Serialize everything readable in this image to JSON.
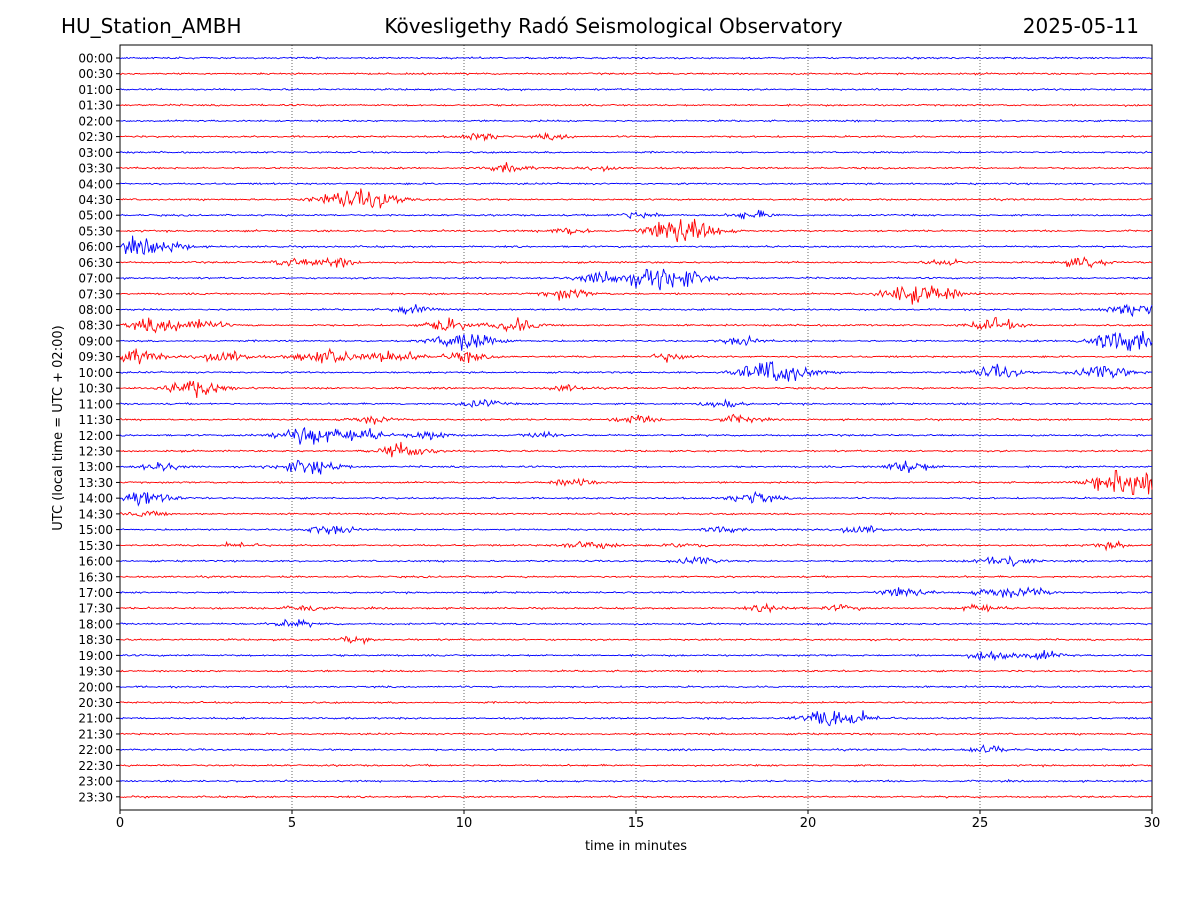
{
  "header": {
    "station": "HU_Station_AMBH",
    "observatory": "Kövesligethy Radó Seismological Observatory",
    "date": "2025-05-11"
  },
  "chart_data": {
    "type": "line",
    "title": "Kövesligethy Radó Seismological Observatory",
    "xlabel": "time in minutes",
    "ylabel": "UTC (local time = UTC + 02:00)",
    "xlim": [
      0,
      30
    ],
    "x_ticks": [
      0,
      5,
      10,
      15,
      20,
      25,
      30
    ],
    "x_gridlines": [
      5,
      10,
      15,
      20,
      25
    ],
    "grid": "vertical dotted",
    "colors": {
      "even_rows": "#0000ff",
      "odd_rows": "#ff0000"
    },
    "rows": [
      {
        "label": "00:00",
        "events": []
      },
      {
        "label": "00:30",
        "events": []
      },
      {
        "label": "01:00",
        "events": []
      },
      {
        "label": "01:30",
        "events": []
      },
      {
        "label": "02:00",
        "events": []
      },
      {
        "label": "02:30",
        "events": [
          [
            10.5,
            0.4
          ],
          [
            12.6,
            0.3
          ]
        ]
      },
      {
        "label": "03:00",
        "events": []
      },
      {
        "label": "03:30",
        "events": [
          [
            11.3,
            0.4
          ],
          [
            14.0,
            0.3
          ]
        ]
      },
      {
        "label": "04:00",
        "events": []
      },
      {
        "label": "04:30",
        "events": [
          [
            6.3,
            0.6
          ],
          [
            7.4,
            0.8
          ]
        ]
      },
      {
        "label": "05:00",
        "events": [
          [
            15.1,
            0.4
          ],
          [
            18.4,
            0.4
          ]
        ]
      },
      {
        "label": "05:30",
        "events": [
          [
            13.0,
            0.4
          ],
          [
            16.0,
            0.6
          ],
          [
            16.5,
            1.0
          ]
        ]
      },
      {
        "label": "06:00",
        "events": [
          [
            0.5,
            0.7
          ],
          [
            1.5,
            0.4
          ]
        ]
      },
      {
        "label": "06:30",
        "events": [
          [
            5.0,
            0.4
          ],
          [
            6.3,
            0.5
          ],
          [
            28.0,
            0.5
          ],
          [
            24.0,
            0.3
          ]
        ]
      },
      {
        "label": "07:00",
        "events": [
          [
            14.0,
            0.6
          ],
          [
            15.5,
            0.9
          ],
          [
            16.4,
            0.7
          ]
        ]
      },
      {
        "label": "07:30",
        "events": [
          [
            13.0,
            0.5
          ],
          [
            22.7,
            0.6
          ],
          [
            23.6,
            0.8
          ]
        ]
      },
      {
        "label": "08:00",
        "events": [
          [
            8.5,
            0.4
          ],
          [
            29.5,
            0.7
          ]
        ]
      },
      {
        "label": "08:30",
        "events": [
          [
            1.0,
            0.7
          ],
          [
            2.3,
            0.6
          ],
          [
            9.5,
            0.6
          ],
          [
            11.5,
            0.6
          ],
          [
            25.4,
            0.6
          ]
        ]
      },
      {
        "label": "09:00",
        "events": [
          [
            10.0,
            0.9
          ],
          [
            18.0,
            0.4
          ],
          [
            28.9,
            0.8
          ],
          [
            29.6,
            0.5
          ]
        ]
      },
      {
        "label": "09:30",
        "events": [
          [
            0.3,
            0.8
          ],
          [
            3.0,
            0.7
          ],
          [
            6.0,
            0.8
          ],
          [
            8.0,
            0.6
          ],
          [
            10.0,
            0.5
          ],
          [
            16.0,
            0.4
          ]
        ]
      },
      {
        "label": "10:00",
        "events": [
          [
            18.5,
            0.6
          ],
          [
            19.3,
            0.9
          ],
          [
            25.5,
            0.6
          ],
          [
            28.6,
            0.7
          ]
        ]
      },
      {
        "label": "10:30",
        "events": [
          [
            2.1,
            0.9
          ],
          [
            13.0,
            0.3
          ]
        ]
      },
      {
        "label": "11:00",
        "events": [
          [
            10.5,
            0.4
          ],
          [
            17.5,
            0.4
          ]
        ]
      },
      {
        "label": "11:30",
        "events": [
          [
            7.3,
            0.4
          ],
          [
            15.0,
            0.4
          ],
          [
            18.0,
            0.4
          ]
        ]
      },
      {
        "label": "12:00",
        "events": [
          [
            5.5,
            1.0
          ],
          [
            7.0,
            0.6
          ],
          [
            9.0,
            0.4
          ],
          [
            12.3,
            0.3
          ]
        ]
      },
      {
        "label": "12:30",
        "events": [
          [
            8.3,
            0.7
          ]
        ]
      },
      {
        "label": "13:00",
        "events": [
          [
            5.5,
            0.8
          ],
          [
            1.2,
            0.4
          ],
          [
            22.9,
            0.6
          ]
        ]
      },
      {
        "label": "13:30",
        "events": [
          [
            13.2,
            0.4
          ],
          [
            29.2,
            1.0
          ],
          [
            29.6,
            0.8
          ]
        ]
      },
      {
        "label": "14:00",
        "events": [
          [
            0.6,
            0.8
          ],
          [
            18.4,
            0.6
          ]
        ]
      },
      {
        "label": "14:30",
        "events": [
          [
            0.8,
            0.3
          ]
        ]
      },
      {
        "label": "15:00",
        "events": [
          [
            6.1,
            0.5
          ],
          [
            21.5,
            0.5
          ],
          [
            17.5,
            0.3
          ]
        ]
      },
      {
        "label": "15:30",
        "events": [
          [
            13.7,
            0.6
          ],
          [
            3.5,
            0.3
          ],
          [
            16.5,
            0.3
          ],
          [
            28.8,
            0.3
          ]
        ]
      },
      {
        "label": "16:00",
        "events": [
          [
            16.8,
            0.4
          ],
          [
            25.7,
            0.6
          ]
        ]
      },
      {
        "label": "16:30",
        "events": []
      },
      {
        "label": "17:00",
        "events": [
          [
            22.8,
            0.5
          ],
          [
            25.5,
            0.5
          ],
          [
            26.5,
            0.4
          ]
        ]
      },
      {
        "label": "17:30",
        "events": [
          [
            5.3,
            0.4
          ],
          [
            18.9,
            0.4
          ],
          [
            21.0,
            0.3
          ],
          [
            25.0,
            0.4
          ]
        ]
      },
      {
        "label": "18:00",
        "events": [
          [
            5.0,
            0.4
          ]
        ]
      },
      {
        "label": "18:30",
        "events": [
          [
            6.8,
            0.3
          ]
        ]
      },
      {
        "label": "19:00",
        "events": [
          [
            25.4,
            0.5
          ],
          [
            26.8,
            0.4
          ]
        ]
      },
      {
        "label": "19:30",
        "events": []
      },
      {
        "label": "20:00",
        "events": []
      },
      {
        "label": "20:30",
        "events": []
      },
      {
        "label": "21:00",
        "events": [
          [
            20.9,
            1.0
          ]
        ]
      },
      {
        "label": "21:30",
        "events": []
      },
      {
        "label": "22:00",
        "events": [
          [
            25.2,
            0.4
          ]
        ]
      },
      {
        "label": "22:30",
        "events": []
      },
      {
        "label": "23:00",
        "events": []
      },
      {
        "label": "23:30",
        "events": []
      }
    ]
  }
}
